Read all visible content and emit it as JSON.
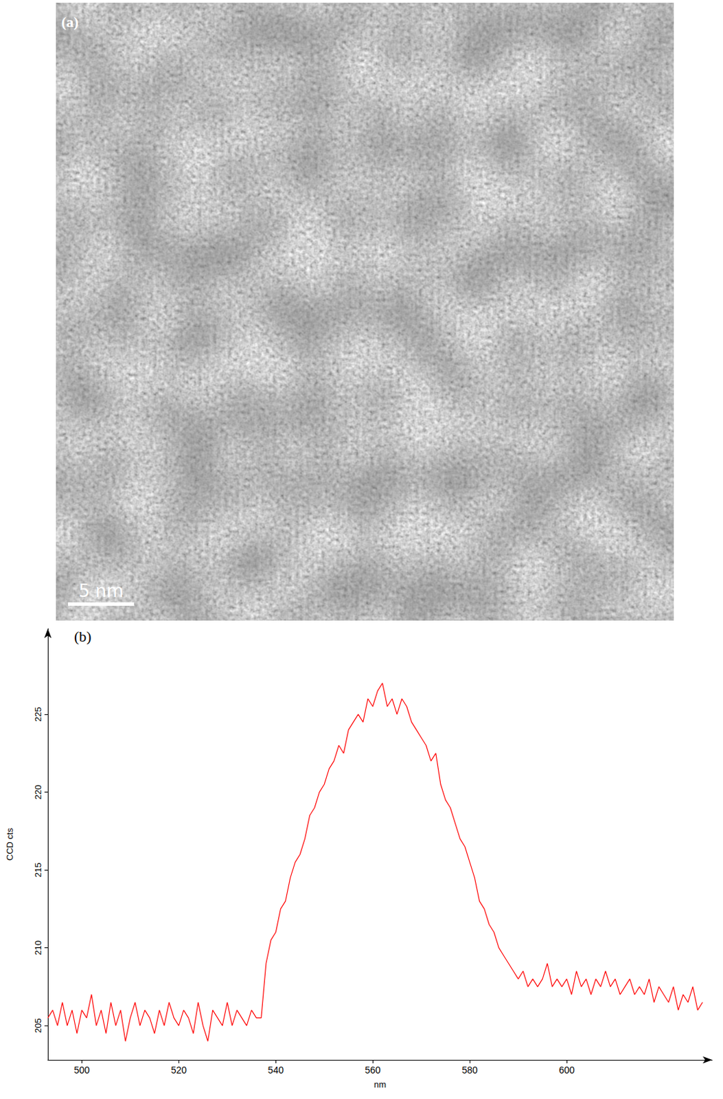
{
  "image_panel": {
    "label": "(a)",
    "scale_bar_label": "5 nm"
  },
  "chart_data": {
    "type": "line",
    "panel_label": "(b)",
    "x_label": "nm",
    "y_label": "CCD cts",
    "color": "#ff0000",
    "grid": false,
    "xlim": [
      493,
      630
    ],
    "xticks": [
      500,
      520,
      540,
      560,
      580,
      600
    ],
    "ylim": [
      202.8,
      230.5
    ],
    "yticks": [
      205,
      210,
      215,
      220,
      225
    ],
    "x": [
      493,
      494,
      495,
      496,
      497,
      498,
      499,
      500,
      501,
      502,
      503,
      504,
      505,
      506,
      507,
      508,
      509,
      510,
      511,
      512,
      513,
      514,
      515,
      516,
      517,
      518,
      519,
      520,
      521,
      522,
      523,
      524,
      525,
      526,
      527,
      528,
      529,
      530,
      531,
      532,
      533,
      534,
      535,
      536,
      537,
      538,
      539,
      540,
      541,
      542,
      543,
      544,
      545,
      546,
      547,
      548,
      549,
      550,
      551,
      552,
      553,
      554,
      555,
      556,
      557,
      558,
      559,
      560,
      561,
      562,
      563,
      564,
      565,
      566,
      567,
      568,
      569,
      570,
      571,
      572,
      573,
      574,
      575,
      576,
      577,
      578,
      579,
      580,
      581,
      582,
      583,
      584,
      585,
      586,
      587,
      588,
      589,
      590,
      591,
      592,
      593,
      594,
      595,
      596,
      597,
      598,
      599,
      600,
      601,
      602,
      603,
      604,
      605,
      606,
      607,
      608,
      609,
      610,
      611,
      612,
      613,
      614,
      615,
      616,
      617,
      618,
      619,
      620,
      621,
      622,
      623,
      624,
      625,
      626,
      627,
      628
    ],
    "values": [
      205.5,
      206,
      205,
      206.5,
      205,
      206,
      204.5,
      206,
      205.5,
      207,
      205,
      206,
      204.5,
      206.5,
      205,
      206,
      204,
      205.5,
      206.5,
      205,
      206,
      205.5,
      204.5,
      206,
      205,
      206.5,
      205.5,
      205,
      206,
      205.5,
      204.5,
      206.5,
      205,
      204,
      206,
      205.5,
      205,
      206.5,
      205,
      206,
      205.5,
      205,
      206,
      205.5,
      205.5,
      209,
      210.5,
      211,
      212.5,
      213,
      214.5,
      215.5,
      216,
      217,
      218.5,
      219,
      220,
      220.5,
      221.5,
      222,
      223,
      222.5,
      224,
      224.5,
      225,
      224.5,
      226,
      225.5,
      226.5,
      227,
      225.5,
      226,
      225,
      226,
      225.5,
      224.5,
      224,
      223.5,
      223,
      222,
      222.5,
      220.5,
      219.5,
      219,
      218,
      217,
      216.5,
      215.5,
      214.5,
      213,
      212.5,
      211.5,
      211,
      210,
      209.5,
      209,
      208.5,
      208,
      208.5,
      207.5,
      208,
      207.5,
      208,
      209,
      207.5,
      208,
      207.5,
      208,
      207,
      208.5,
      207.5,
      208,
      207,
      208,
      207.5,
      208.5,
      207.5,
      208,
      207,
      207.5,
      208,
      207,
      207.5,
      207,
      208,
      206.5,
      207.5,
      207,
      206.5,
      207.5,
      206,
      207,
      206.5,
      207.5,
      206,
      206.5
    ]
  }
}
